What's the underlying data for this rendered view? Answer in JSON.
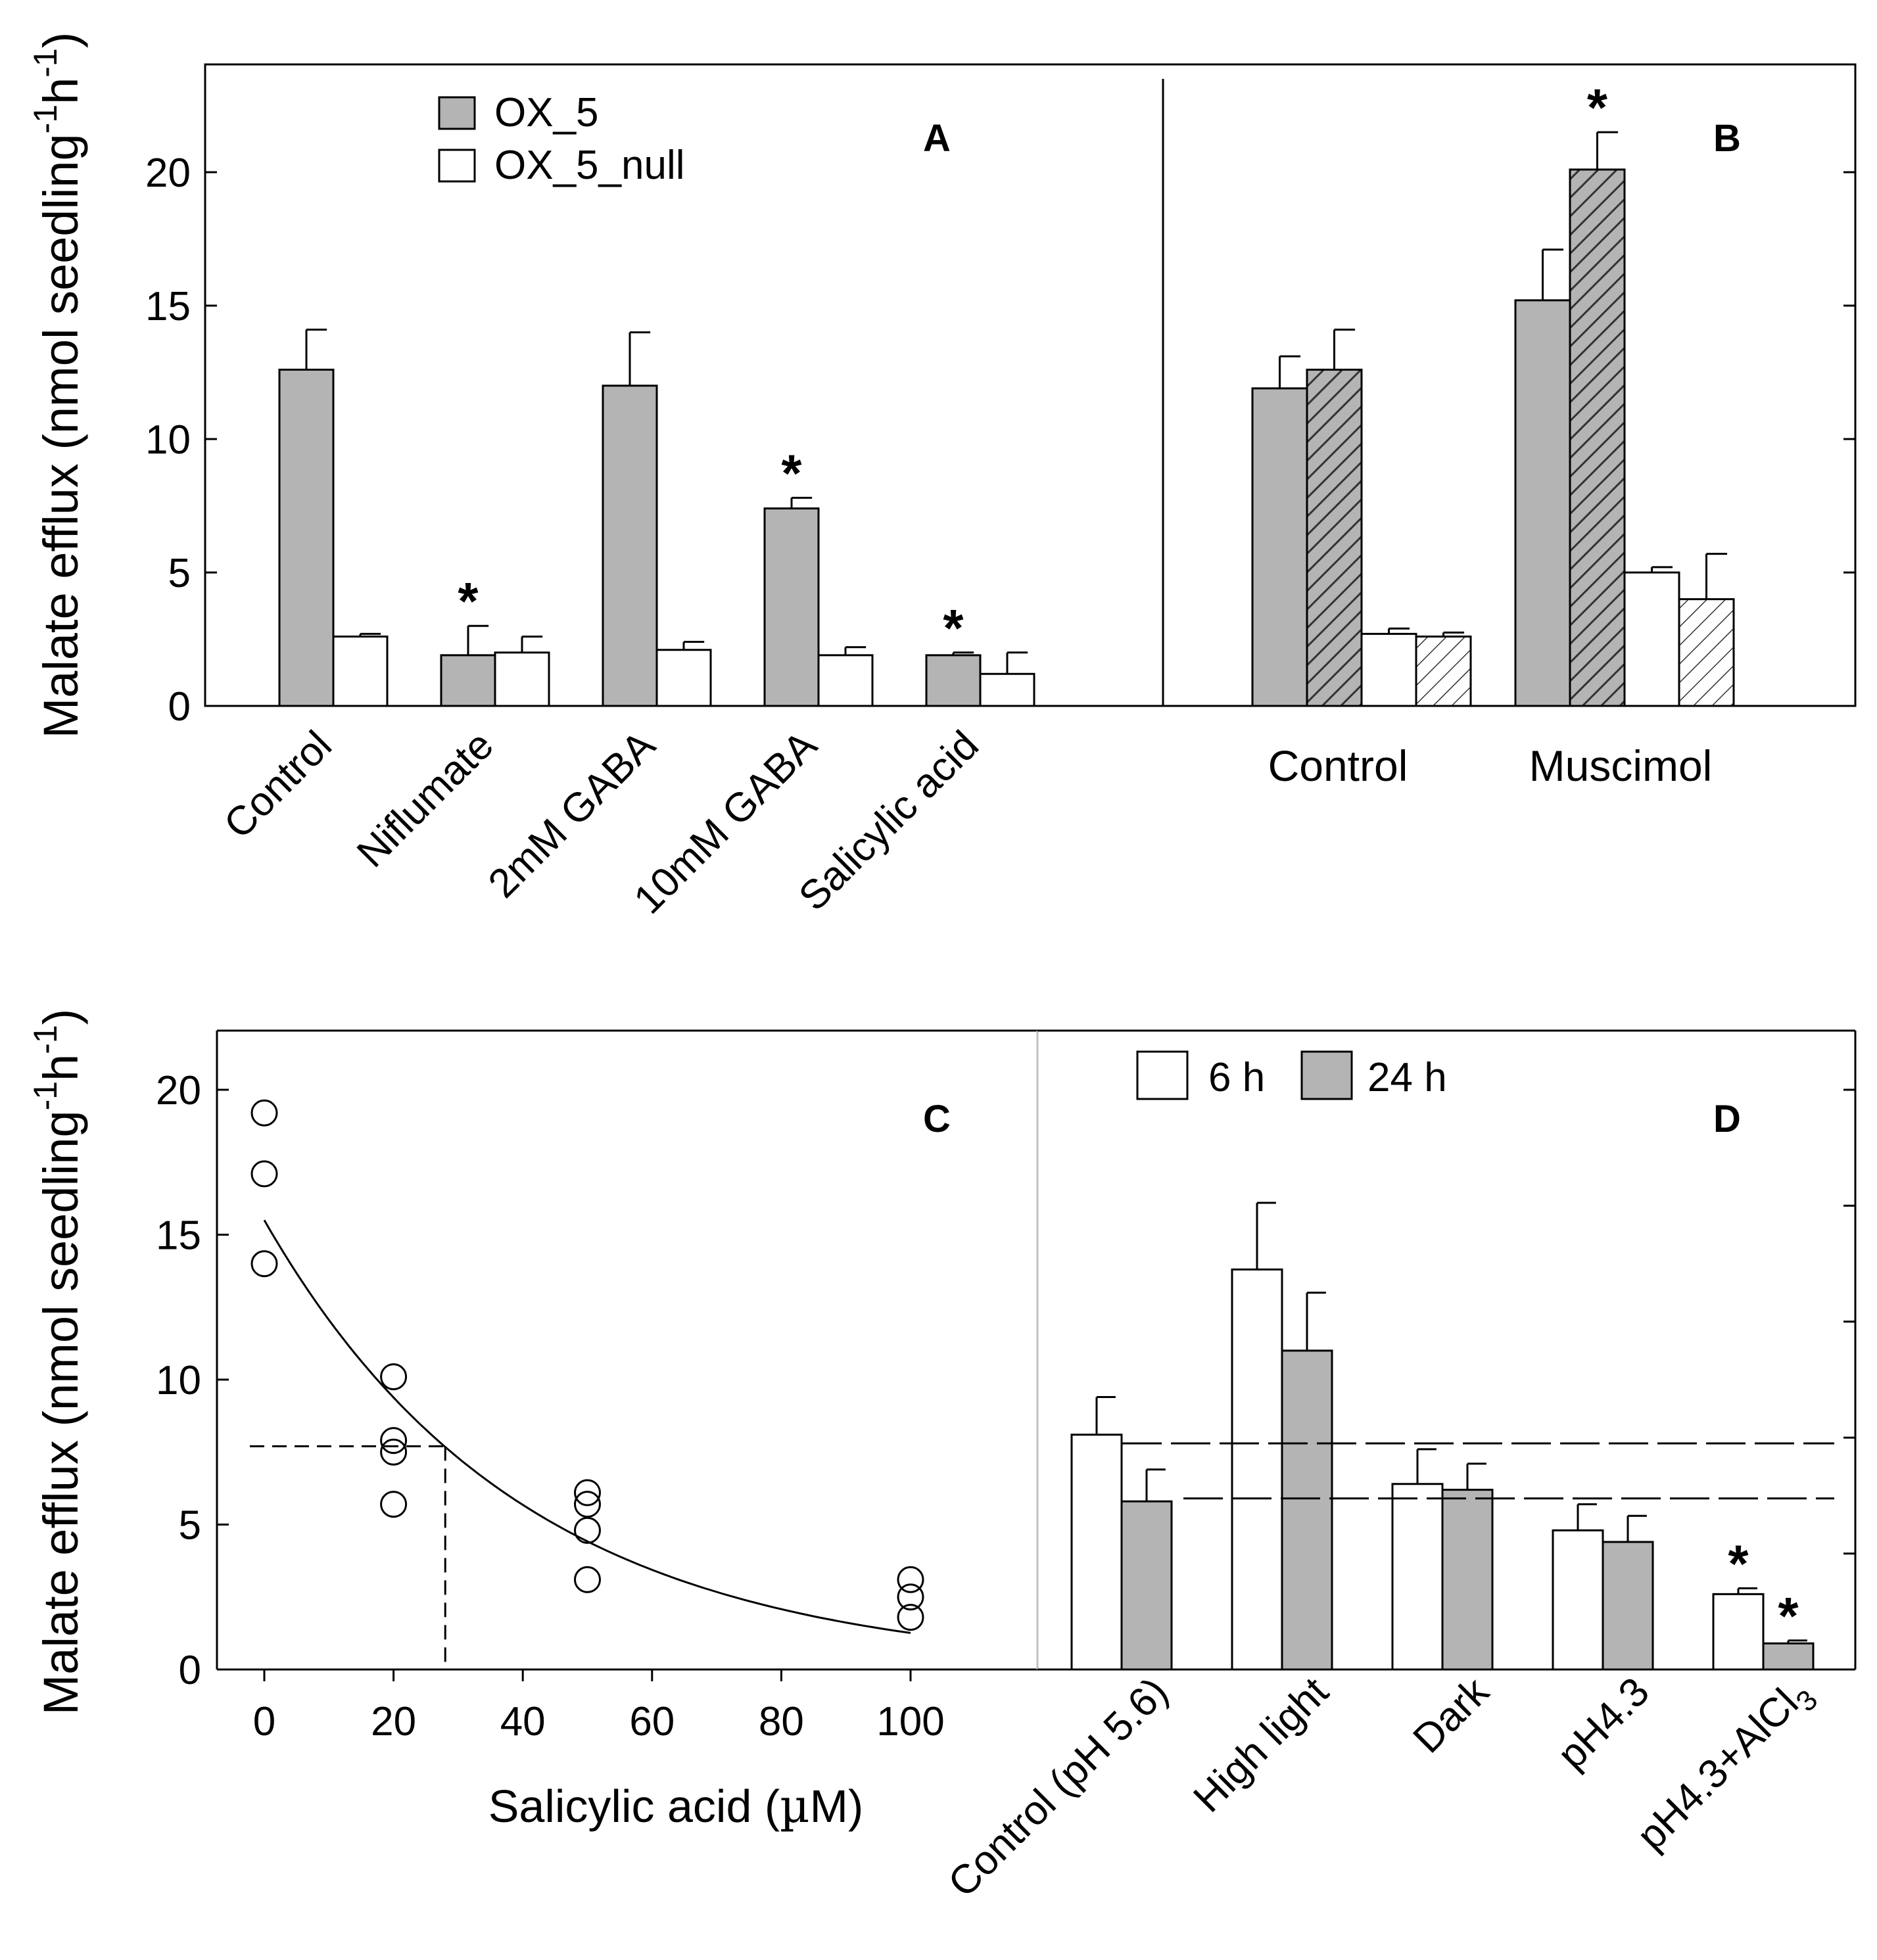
{
  "colors": {
    "gray": "#b4b4b4",
    "white": "#ffffff",
    "dark_hatch": "#3a3a3a",
    "line": "#000000",
    "divider_light": "#c0c0c0"
  },
  "y_axis_label": "Malate efflux (nmol seedling",
  "y_axis_label_sup": "-1",
  "y_axis_label_h": "h",
  "y_axis_label_close": ")",
  "chart_data": [
    {
      "panel": "A",
      "type": "bar",
      "categories": [
        "Control",
        "Niflumate",
        "2mM GABA",
        "10mM GABA",
        "Salicylic acid"
      ],
      "series": [
        {
          "name": "OX_5",
          "fill": "gray",
          "values": [
            12.6,
            1.9,
            12.0,
            7.4,
            1.9
          ],
          "errors": [
            1.5,
            1.1,
            2.0,
            0.4,
            0.1
          ]
        },
        {
          "name": "OX_5_null",
          "fill": "white",
          "values": [
            2.6,
            2.0,
            2.1,
            1.9,
            1.2
          ],
          "errors": [
            0.1,
            0.6,
            0.3,
            0.3,
            0.8
          ]
        }
      ],
      "significance": [
        {
          "series": 0,
          "index": 1,
          "mark": "*"
        },
        {
          "series": 0,
          "index": 3,
          "mark": "*"
        },
        {
          "series": 0,
          "index": 4,
          "mark": "*"
        }
      ],
      "ylim": [
        0,
        24
      ],
      "yticks": [
        0,
        5,
        10,
        15,
        20
      ],
      "legend": [
        "OX_5",
        "OX_5_null"
      ]
    },
    {
      "panel": "B",
      "type": "bar",
      "categories": [
        "Control",
        "Muscimol"
      ],
      "bars": [
        {
          "group": 0,
          "value": 11.9,
          "error": 1.2,
          "fill": "gray"
        },
        {
          "group": 0,
          "value": 12.6,
          "error": 1.5,
          "fill": "gray_hatch"
        },
        {
          "group": 0,
          "value": 2.7,
          "error": 0.2,
          "fill": "white"
        },
        {
          "group": 0,
          "value": 2.6,
          "error": 0.15,
          "fill": "white_hatch"
        },
        {
          "group": 1,
          "value": 15.2,
          "error": 1.9,
          "fill": "gray"
        },
        {
          "group": 1,
          "value": 20.1,
          "error": 1.4,
          "fill": "gray_hatch"
        },
        {
          "group": 1,
          "value": 5.0,
          "error": 0.2,
          "fill": "white"
        },
        {
          "group": 1,
          "value": 4.0,
          "error": 1.7,
          "fill": "white_hatch"
        }
      ],
      "significance": [
        {
          "bar": 5,
          "mark": "*"
        }
      ],
      "ylim": [
        0,
        24
      ]
    },
    {
      "panel": "C",
      "type": "scatter",
      "points": [
        {
          "x": 0,
          "y": 19.2
        },
        {
          "x": 0,
          "y": 17.1
        },
        {
          "x": 0,
          "y": 14.0
        },
        {
          "x": 20,
          "y": 10.1
        },
        {
          "x": 20,
          "y": 7.9
        },
        {
          "x": 20,
          "y": 7.5
        },
        {
          "x": 20,
          "y": 5.7
        },
        {
          "x": 50,
          "y": 6.1
        },
        {
          "x": 50,
          "y": 5.7
        },
        {
          "x": 50,
          "y": 4.8
        },
        {
          "x": 50,
          "y": 3.1
        },
        {
          "x": 100,
          "y": 3.1
        },
        {
          "x": 100,
          "y": 2.5
        },
        {
          "x": 100,
          "y": 1.8
        }
      ],
      "fit": {
        "kind": "exponential",
        "a": 15.5,
        "k": 0.0251,
        "xrange": [
          0,
          100
        ]
      },
      "reference": {
        "x": 28,
        "y": 7.7
      },
      "xlim": [
        -10,
        118
      ],
      "ylim": [
        0,
        22
      ],
      "xticks": [
        0,
        20,
        40,
        60,
        80,
        100
      ],
      "yticks": [
        0,
        5,
        10,
        15,
        20
      ],
      "xlabel": "Salicylic acid (",
      "xlabel_mu": "µ",
      "xlabel_end": "M)"
    },
    {
      "panel": "D",
      "type": "bar",
      "categories": [
        "Control (pH 5.6)",
        "High light",
        "Dark",
        "pH4.3",
        "pH4.3+AlCl"
      ],
      "category_sub": "3",
      "series": [
        {
          "name": "6 h",
          "fill": "white",
          "values": [
            8.1,
            13.8,
            6.4,
            4.8,
            2.6
          ],
          "errors": [
            1.3,
            2.3,
            1.2,
            0.9,
            0.2
          ]
        },
        {
          "name": "24 h",
          "fill": "gray",
          "values": [
            5.8,
            11.0,
            6.2,
            4.4,
            0.9
          ],
          "errors": [
            1.1,
            2.0,
            0.9,
            0.9,
            0.1
          ]
        }
      ],
      "significance": [
        {
          "series": 0,
          "index": 4,
          "mark": "*"
        },
        {
          "series": 1,
          "index": 4,
          "mark": "*"
        }
      ],
      "reference_lines": [
        7.8,
        5.9
      ],
      "ylim": [
        0,
        22
      ],
      "legend": [
        "6 h",
        "24 h"
      ]
    }
  ],
  "panel_labels": [
    "A",
    "B",
    "C",
    "D"
  ]
}
